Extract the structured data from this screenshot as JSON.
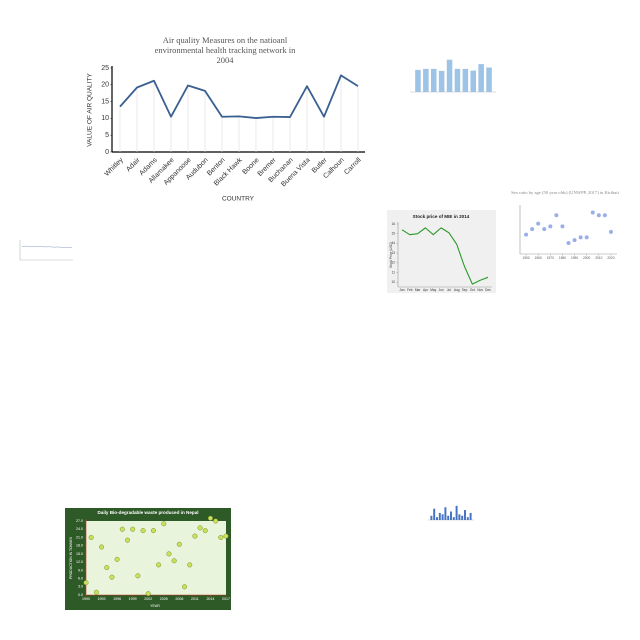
{
  "chart_data": [
    {
      "type": "line",
      "title": "Air quality Measures on the natioanl environmental health tracking network in 2004",
      "y_label": "VALUE OF AIR QUALITY",
      "x_label": "COUNTRY",
      "categories": [
        "Whitley",
        "Adair",
        "Adams",
        "Allamakee",
        "Appanoose",
        "Audubon",
        "Benton",
        "Black Hawk",
        "Boone",
        "Bremer",
        "Buchanan",
        "Buena Vista",
        "Butler",
        "Calhoun",
        "Carroll"
      ],
      "values": [
        13.5,
        19.2,
        21.2,
        10.5,
        19.8,
        18.2,
        10.5,
        10.6,
        10.1,
        10.5,
        10.4,
        19.6,
        10.5,
        22.8,
        19.6
      ],
      "color": "#3a5f91",
      "ylim": [
        0,
        25
      ],
      "yticks": [
        0,
        5,
        10,
        15,
        20,
        25
      ]
    },
    {
      "type": "bar",
      "values": [
        6.5,
        6.8,
        6.8,
        6.2,
        9.5,
        6.8,
        6.8,
        6.3,
        8.2,
        7.2
      ],
      "color": "#9dc3e6",
      "ylim": [
        0,
        10
      ]
    },
    {
      "type": "line",
      "title": "Stock price of MIE in 2014",
      "y_label": "Stock Price (USD)",
      "categories": [
        "Jan",
        "Feb",
        "Mar",
        "Apr",
        "May",
        "Jun",
        "Jul",
        "Aug",
        "Sep",
        "Oct",
        "Nov",
        "Dec"
      ],
      "values": [
        15.4,
        14.9,
        15.0,
        15.6,
        14.9,
        15.6,
        15.1,
        13.9,
        11.6,
        9.8,
        10.2,
        10.5
      ],
      "color": "#2a9a2a",
      "ylim": [
        9.5,
        16
      ],
      "yticks": [
        10,
        11,
        12,
        13,
        14,
        15,
        16
      ]
    },
    {
      "type": "scatter",
      "title": "Sex ratio by age (50 year olds) (UNWPP, 2017) in Kiribati",
      "x": [
        1950,
        1955,
        1960,
        1965,
        1970,
        1975,
        1980,
        1985,
        1990,
        1995,
        2000,
        2005,
        2010,
        2015,
        2020
      ],
      "values": [
        92,
        94,
        96,
        94,
        95,
        99,
        95,
        89,
        90,
        91,
        91,
        100,
        99,
        99,
        93
      ],
      "color": "#9aaee8",
      "xlim": [
        1945,
        2025
      ],
      "ylim": [
        85,
        102
      ],
      "xticks": [
        1950,
        1960,
        1970,
        1980,
        1990,
        2000,
        2010,
        2020
      ]
    },
    {
      "type": "line",
      "values": [
        6,
        6.2,
        5.9,
        6.1,
        6,
        5.8,
        5.9,
        5.7,
        5.8,
        5.6,
        5.5,
        5.6
      ],
      "color": "#8899bb",
      "ylim": [
        0,
        8
      ]
    },
    {
      "type": "scatter",
      "title": "Daily Bio-degradable waste produced in Nepal",
      "y_label": "PRODUCTION IN TONNES",
      "x_label": "YEAR",
      "x": [
        1990,
        1991,
        1992,
        1993,
        1994,
        1995,
        1996,
        1997,
        1998,
        1999,
        2000,
        2001,
        2002,
        2003,
        2004,
        2005,
        2006,
        2007,
        2008,
        2009,
        2010,
        2011,
        2012,
        2013,
        2014,
        2015,
        2016,
        2017
      ],
      "values": [
        4.5,
        21,
        1,
        17.5,
        10,
        6.5,
        13,
        24,
        20,
        24,
        7,
        23.5,
        0.5,
        23.5,
        11,
        26,
        15,
        12.5,
        18.5,
        3,
        11,
        21.5,
        24.5,
        23.5,
        28,
        27,
        21,
        21.5
      ],
      "color": "#c8e05a",
      "xlim": [
        1990,
        2017
      ],
      "ylim": [
        0,
        27
      ],
      "xticks": [
        1990,
        1993,
        1996,
        1999,
        2002,
        2005,
        2008,
        2011,
        2014,
        2017
      ],
      "yticks": [
        {
          "value": 0,
          "label": "0.0"
        },
        {
          "value": 3,
          "label": "3.0"
        },
        {
          "value": 6,
          "label": "6.0"
        },
        {
          "value": 9,
          "label": "9.0"
        },
        {
          "value": 12,
          "label": "12.0"
        },
        {
          "value": 15,
          "label": "15.0"
        },
        {
          "value": 18,
          "label": "18.0"
        },
        {
          "value": 21,
          "label": "21.0"
        },
        {
          "value": 24,
          "label": "24.0"
        },
        {
          "value": 27,
          "label": "27.0"
        }
      ]
    },
    {
      "type": "bar",
      "values": [
        3,
        8,
        2,
        5,
        4,
        9,
        3,
        6,
        2,
        10,
        4,
        3,
        7,
        2,
        5
      ],
      "color": "#4472c4",
      "ylim": [
        0,
        12
      ]
    }
  ]
}
